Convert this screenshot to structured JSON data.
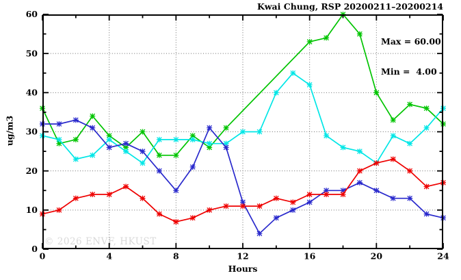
{
  "chart": {
    "title": "Kwai Chung, RSP 20200211–20200214",
    "xlabel": "Hours",
    "ylabel": "ug/m3",
    "watermark": "© 2026 ENVF, HKUST"
  },
  "chart_data": {
    "type": "line",
    "title": "Kwai Chung, RSP 20200211–20200214",
    "xlabel": "Hours",
    "ylabel": "ug/m3",
    "xlim": [
      0,
      24
    ],
    "ylim": [
      0,
      60
    ],
    "x_major_ticks": [
      0,
      4,
      8,
      12,
      16,
      20,
      24
    ],
    "x_minor_ticks": [
      2,
      6,
      10,
      14,
      18,
      22
    ],
    "y_major_ticks": [
      0,
      10,
      20,
      30,
      40,
      50,
      60
    ],
    "y_minor_ticks": [
      5,
      15,
      25,
      35,
      45,
      55
    ],
    "x_grid_at": [
      4,
      8,
      12,
      16,
      20
    ],
    "y_grid_at": [
      10,
      20,
      30,
      40,
      50
    ],
    "grid": "dotted",
    "legend_position": "top-right-inside",
    "annotations": [
      "Max = 60.00",
      "Min =  4.00"
    ],
    "x": [
      0,
      1,
      2,
      3,
      4,
      5,
      6,
      7,
      8,
      9,
      10,
      11,
      12,
      13,
      14,
      15,
      16,
      17,
      18,
      19,
      20,
      21,
      22,
      23,
      24
    ],
    "series": [
      {
        "name": "series-green",
        "color": "#00c400",
        "values": [
          36,
          27,
          28,
          34,
          29,
          26,
          30,
          24,
          24,
          29,
          26,
          31,
          null,
          null,
          null,
          null,
          53,
          54,
          60,
          55,
          40,
          33,
          37,
          36,
          32
        ]
      },
      {
        "name": "series-cyan",
        "color": "#00e6e6",
        "values": [
          29,
          28,
          23,
          24,
          28,
          25,
          22,
          28,
          28,
          28,
          27,
          27,
          30,
          30,
          40,
          45,
          42,
          29,
          26,
          25,
          22,
          29,
          27,
          31,
          36
        ]
      },
      {
        "name": "series-blue",
        "color": "#2929cc",
        "values": [
          32,
          32,
          33,
          31,
          26,
          27,
          25,
          20,
          15,
          21,
          31,
          26,
          12,
          4,
          8,
          10,
          12,
          15,
          15,
          17,
          15,
          13,
          13,
          9,
          8
        ]
      },
      {
        "name": "series-red",
        "color": "#ee0000",
        "values": [
          9,
          10,
          13,
          14,
          14,
          16,
          13,
          9,
          7,
          8,
          10,
          11,
          11,
          11,
          13,
          12,
          14,
          14,
          14,
          20,
          22,
          23,
          20,
          16,
          17
        ]
      }
    ],
    "max_label": "Max = 60.00",
    "min_label": "Min =  4.00"
  }
}
